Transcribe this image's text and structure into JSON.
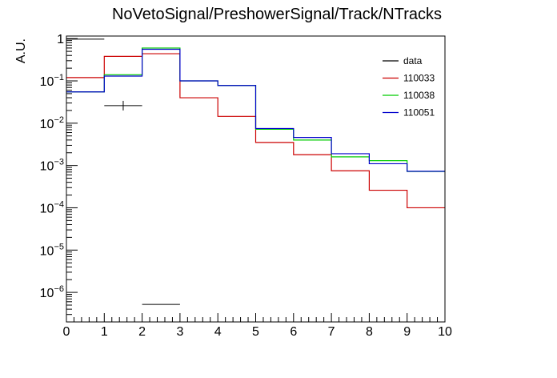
{
  "chart_data": {
    "type": "step",
    "title": "NoVetoSignal/PreshowerSignal/Track/NTracks",
    "xlabel": "",
    "ylabel": "A.U.",
    "xlim": [
      0,
      10
    ],
    "ylim": [
      2e-07,
      1.15
    ],
    "yscale": "log",
    "xticks": [
      "0",
      "1",
      "2",
      "3",
      "4",
      "5",
      "6",
      "7",
      "8",
      "9",
      "10"
    ],
    "yticks": [
      {
        "value": 1,
        "base": "1",
        "exp": ""
      },
      {
        "value": 0.1,
        "base": "10",
        "exp": "−1"
      },
      {
        "value": 0.01,
        "base": "10",
        "exp": "−2"
      },
      {
        "value": 0.001,
        "base": "10",
        "exp": "−3"
      },
      {
        "value": 0.0001,
        "base": "10",
        "exp": "−4"
      },
      {
        "value": 1e-05,
        "base": "10",
        "exp": "−5"
      },
      {
        "value": 1e-06,
        "base": "10",
        "exp": "−6"
      }
    ],
    "bin_edges": [
      0,
      1,
      2,
      3,
      4,
      5,
      6,
      7,
      8,
      9,
      10
    ],
    "legend_position": "top-right",
    "series": [
      {
        "name": "data",
        "kind": "points",
        "color": "#000000",
        "points": [
          {
            "x": 0.5,
            "y": 0.97
          },
          {
            "x": 1.5,
            "y": 0.026
          },
          {
            "x": 2.5,
            "y": 5.2e-07
          }
        ]
      },
      {
        "name": "110033",
        "kind": "hist",
        "color": "#cc0000",
        "values": [
          0.12,
          0.38,
          0.44,
          0.04,
          0.0145,
          0.0035,
          0.0018,
          0.00075,
          0.00026,
          0.0001
        ]
      },
      {
        "name": "110038",
        "kind": "hist",
        "color": "#00cc00",
        "values": [
          0.055,
          0.14,
          0.6,
          0.1,
          0.078,
          0.0072,
          0.004,
          0.0016,
          0.0013,
          0.00072
        ]
      },
      {
        "name": "110051",
        "kind": "hist",
        "color": "#0000cc",
        "values": [
          0.055,
          0.13,
          0.56,
          0.1,
          0.078,
          0.0075,
          0.0046,
          0.0019,
          0.0011,
          0.00073
        ]
      }
    ]
  }
}
